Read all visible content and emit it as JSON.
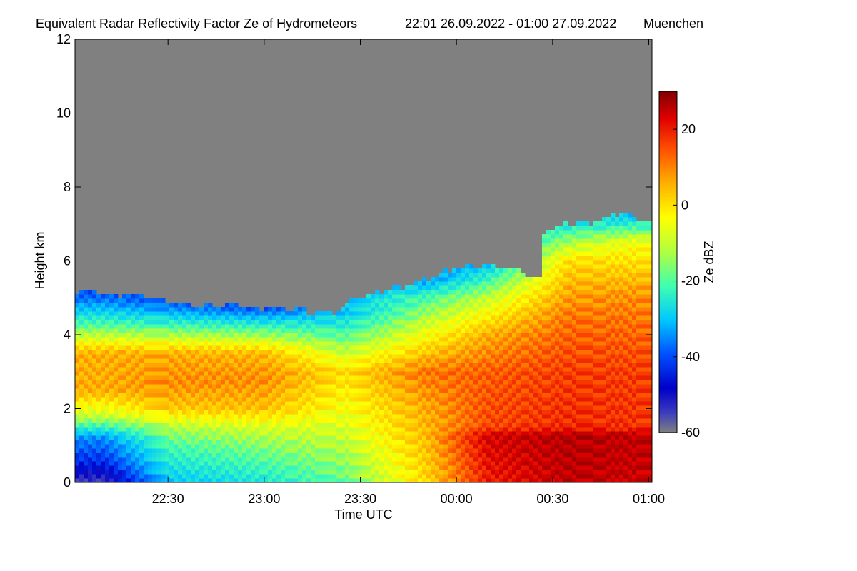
{
  "chart_data": {
    "type": "heatmap",
    "title": "Equivalent Radar Reflectivity Factor Ze of Hydrometeors",
    "period": "22:01 26.09.2022 - 01:00 27.09.2022",
    "location": "Muenchen",
    "xlabel": "Time UTC",
    "ylabel": "Height km",
    "x_start_minutes": -119,
    "x_end_minutes": 61,
    "x_ticks": [
      {
        "minutes": -90,
        "label": "22:30"
      },
      {
        "minutes": -60,
        "label": "23:00"
      },
      {
        "minutes": -30,
        "label": "23:30"
      },
      {
        "minutes": 0,
        "label": "00:00"
      },
      {
        "minutes": 30,
        "label": "00:30"
      },
      {
        "minutes": 60,
        "label": "01:00"
      }
    ],
    "ylim": [
      0,
      12
    ],
    "y_ticks": [
      {
        "value": 0,
        "label": "0"
      },
      {
        "value": 2,
        "label": "2"
      },
      {
        "value": 4,
        "label": "4"
      },
      {
        "value": 6,
        "label": "6"
      },
      {
        "value": 8,
        "label": "8"
      },
      {
        "value": 10,
        "label": "10"
      },
      {
        "value": 12,
        "label": "12"
      }
    ],
    "colorbar": {
      "label": "Ze dBZ",
      "range": [
        -60,
        30
      ],
      "ticks": [
        {
          "value": 20,
          "label": "20"
        },
        {
          "value": 0,
          "label": "0"
        },
        {
          "value": -20,
          "label": "-20"
        },
        {
          "value": -40,
          "label": "-40"
        },
        {
          "value": -60,
          "label": "-60"
        }
      ]
    },
    "no_echo_color": "#808080",
    "echo_top_km": [
      {
        "minutes": -119,
        "value": 5.2
      },
      {
        "minutes": -110,
        "value": 5.1
      },
      {
        "minutes": -100,
        "value": 5.1
      },
      {
        "minutes": -90,
        "value": 4.9
      },
      {
        "minutes": -80,
        "value": 4.8
      },
      {
        "minutes": -70,
        "value": 4.8
      },
      {
        "minutes": -60,
        "value": 4.75
      },
      {
        "minutes": -50,
        "value": 4.7
      },
      {
        "minutes": -45,
        "value": 4.6
      },
      {
        "minutes": -38,
        "value": 4.6
      },
      {
        "minutes": -32,
        "value": 5.0
      },
      {
        "minutes": -26,
        "value": 5.1
      },
      {
        "minutes": -18,
        "value": 5.3
      },
      {
        "minutes": -10,
        "value": 5.5
      },
      {
        "minutes": 0,
        "value": 5.8
      },
      {
        "minutes": 10,
        "value": 5.9
      },
      {
        "minutes": 20,
        "value": 5.7
      },
      {
        "minutes": 26,
        "value": 5.5
      },
      {
        "minutes": 27,
        "value": 6.8
      },
      {
        "minutes": 35,
        "value": 7.0
      },
      {
        "minutes": 45,
        "value": 7.1
      },
      {
        "minutes": 52,
        "value": 7.3
      },
      {
        "minutes": 61,
        "value": 7.0
      }
    ],
    "reflectivity_dbz": [
      {
        "minutes": -110,
        "profile": [
          [
            0,
            -55
          ],
          [
            0.5,
            -45
          ],
          [
            1.2,
            -35
          ],
          [
            1.8,
            -10
          ],
          [
            2.5,
            5
          ],
          [
            3.5,
            5
          ],
          [
            4.3,
            -20
          ],
          [
            5.1,
            -40
          ]
        ]
      },
      {
        "minutes": -90,
        "profile": [
          [
            0,
            -30
          ],
          [
            1.0,
            -20
          ],
          [
            1.5,
            -12
          ],
          [
            2.0,
            2
          ],
          [
            2.7,
            8
          ],
          [
            3.5,
            5
          ],
          [
            4.3,
            -22
          ],
          [
            4.9,
            -40
          ]
        ]
      },
      {
        "minutes": -60,
        "profile": [
          [
            0,
            -25
          ],
          [
            1.0,
            -15
          ],
          [
            1.5,
            -8
          ],
          [
            2.0,
            3
          ],
          [
            2.8,
            8
          ],
          [
            3.5,
            4
          ],
          [
            4.3,
            -24
          ],
          [
            4.7,
            -40
          ]
        ]
      },
      {
        "minutes": -35,
        "profile": [
          [
            0,
            -18
          ],
          [
            1.2,
            -10
          ],
          [
            2.0,
            -5
          ],
          [
            3.0,
            0
          ],
          [
            3.8,
            -15
          ],
          [
            4.6,
            -30
          ]
        ]
      },
      {
        "minutes": -10,
        "profile": [
          [
            0,
            0
          ],
          [
            1.2,
            3
          ],
          [
            2.0,
            5
          ],
          [
            3.0,
            10
          ],
          [
            4.0,
            -5
          ],
          [
            5.0,
            -20
          ],
          [
            5.5,
            -35
          ]
        ]
      },
      {
        "minutes": 10,
        "profile": [
          [
            0,
            18
          ],
          [
            1.3,
            22
          ],
          [
            1.5,
            14
          ],
          [
            3.0,
            12
          ],
          [
            4.0,
            5
          ],
          [
            5.0,
            -10
          ],
          [
            5.9,
            -30
          ]
        ]
      },
      {
        "minutes": 35,
        "profile": [
          [
            0,
            24
          ],
          [
            1.3,
            25
          ],
          [
            1.5,
            17
          ],
          [
            3.0,
            15
          ],
          [
            4.5,
            10
          ],
          [
            6.0,
            0
          ],
          [
            7.0,
            -25
          ]
        ]
      },
      {
        "minutes": 55,
        "profile": [
          [
            0,
            23
          ],
          [
            1.3,
            24
          ],
          [
            1.5,
            16
          ],
          [
            3.0,
            15
          ],
          [
            5.0,
            8
          ],
          [
            6.5,
            -5
          ],
          [
            7.2,
            -30
          ]
        ]
      }
    ]
  }
}
